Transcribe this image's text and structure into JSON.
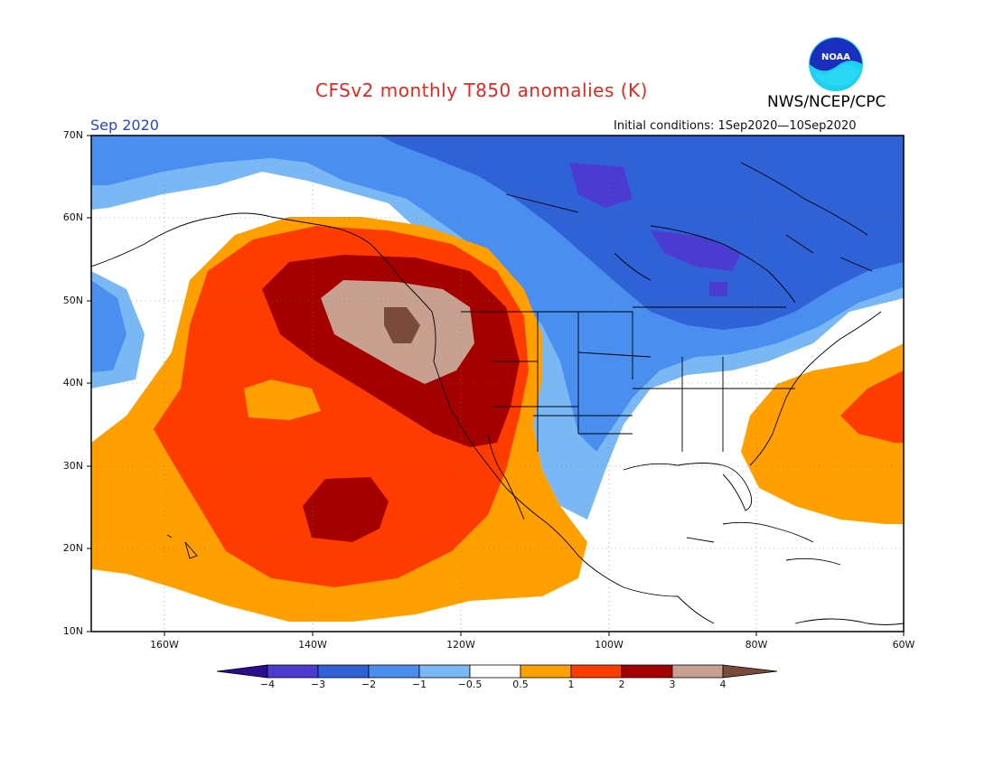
{
  "title": "CFSv2 monthly T850 anomalies (K)",
  "organization": "NWS/NCEP/CPC",
  "logo_text": "NOAA",
  "period": "Sep 2020",
  "initial_conditions": "Initial conditions: 1Sep2020—10Sep2020",
  "lat_labels": [
    "70N",
    "60N",
    "50N",
    "40N",
    "30N",
    "20N",
    "10N"
  ],
  "lon_labels": [
    "160W",
    "140W",
    "120W",
    "100W",
    "80W",
    "60W"
  ],
  "colorbar": {
    "colors": [
      "#2b0c8e",
      "#4b3bd0",
      "#2f62d6",
      "#4a8ef0",
      "#7ab8f5",
      "#ffffff",
      "#ffa000",
      "#ff3c00",
      "#a50000",
      "#c8a090",
      "#7a4a3a"
    ],
    "labels": [
      "−4",
      "−3",
      "−2",
      "−1",
      "−0.5",
      "0.5",
      "1",
      "2",
      "3",
      "4"
    ]
  },
  "colors": {
    "title": "#e8261c",
    "period": "#2a3fe0",
    "cold_strong": "#4b3bd0",
    "cold_mid": "#2f62d6",
    "cold_light": "#4a8ef0",
    "cold_faint": "#7ab8f5",
    "warm_faint": "#ffa000",
    "warm_light": "#ff3c00",
    "warm_mid": "#a50000",
    "warm_strong": "#c8a090"
  }
}
